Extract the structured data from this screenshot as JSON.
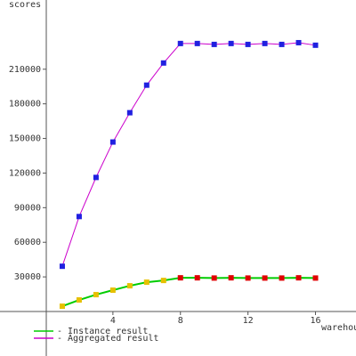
{
  "chart_data": {
    "type": "line",
    "y_label": "scores",
    "x_label": "warehouses",
    "x": [
      1,
      2,
      3,
      4,
      5,
      6,
      7,
      8,
      9,
      10,
      11,
      12,
      13,
      14,
      15,
      16
    ],
    "series": [
      {
        "name": "- Instance result",
        "color": "#00cc00",
        "marker_colors": [
          "#e6c000",
          "#e6c000",
          "#e6c000",
          "#e6c000",
          "#e6c000",
          "#e6c000",
          "#e6c000",
          "#e00000",
          "#e00000",
          "#e00000",
          "#e00000",
          "#e00000",
          "#e00000",
          "#e00000",
          "#e00000",
          "#e00000"
        ],
        "values": [
          4600,
          10000,
          14600,
          18500,
          22300,
          25400,
          26900,
          29200,
          29200,
          29000,
          29200,
          29000,
          29000,
          29000,
          29200,
          29000
        ]
      },
      {
        "name": "- Aggregated result",
        "color": "#cc00cc",
        "marker_colors": [
          "#2020e0",
          "#2020e0",
          "#2020e0",
          "#2020e0",
          "#2020e0",
          "#2020e0",
          "#2020e0",
          "#2020e0",
          "#2020e0",
          "#2020e0",
          "#2020e0",
          "#2020e0",
          "#2020e0",
          "#2020e0",
          "#2020e0",
          "#2020e0"
        ],
        "values": [
          39200,
          82300,
          116200,
          146900,
          172300,
          196200,
          215400,
          232300,
          232300,
          231500,
          232300,
          231500,
          232300,
          231500,
          233000,
          230800
        ]
      }
    ],
    "xlim": [
      0,
      18.4
    ],
    "ylim": [
      0,
      270000
    ],
    "xticks": [
      4,
      8,
      12,
      16
    ],
    "yticks": [
      30000,
      60000,
      90000,
      120000,
      150000,
      180000,
      210000
    ]
  }
}
